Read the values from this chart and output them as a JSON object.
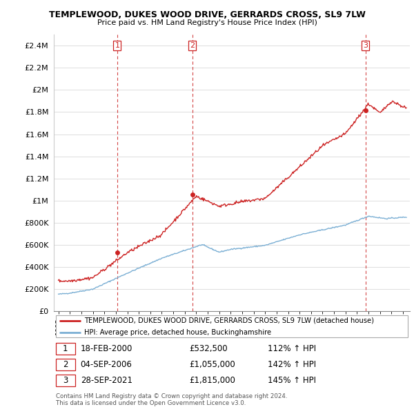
{
  "title_line1": "TEMPLEWOOD, DUKES WOOD DRIVE, GERRARDS CROSS, SL9 7LW",
  "title_line2": "Price paid vs. HM Land Registry's House Price Index (HPI)",
  "ylim": [
    0,
    2500000
  ],
  "yticks": [
    0,
    200000,
    400000,
    600000,
    800000,
    1000000,
    1200000,
    1400000,
    1600000,
    1800000,
    2000000,
    2200000,
    2400000
  ],
  "ytick_labels": [
    "£0",
    "£200K",
    "£400K",
    "£600K",
    "£800K",
    "£1M",
    "£1.2M",
    "£1.4M",
    "£1.6M",
    "£1.8M",
    "£2M",
    "£2.2M",
    "£2.4M"
  ],
  "hpi_color": "#7bafd4",
  "price_color": "#cc2222",
  "dashed_color": "#cc2222",
  "legend_label_price": "TEMPLEWOOD, DUKES WOOD DRIVE, GERRARDS CROSS, SL9 7LW (detached house)",
  "legend_label_hpi": "HPI: Average price, detached house, Buckinghamshire",
  "sale1_date": "18-FEB-2000",
  "sale1_price": "£532,500",
  "sale1_hpi": "112% ↑ HPI",
  "sale2_date": "04-SEP-2006",
  "sale2_price": "£1,055,000",
  "sale2_hpi": "142% ↑ HPI",
  "sale3_date": "28-SEP-2021",
  "sale3_price": "£1,815,000",
  "sale3_hpi": "145% ↑ HPI",
  "footnote1": "Contains HM Land Registry data © Crown copyright and database right 2024.",
  "footnote2": "This data is licensed under the Open Government Licence v3.0.",
  "sale_years": [
    2000.12,
    2006.67,
    2021.75
  ],
  "sale_prices_plot": [
    532500,
    1055000,
    1815000
  ],
  "sale_numbers": [
    "1",
    "2",
    "3"
  ]
}
